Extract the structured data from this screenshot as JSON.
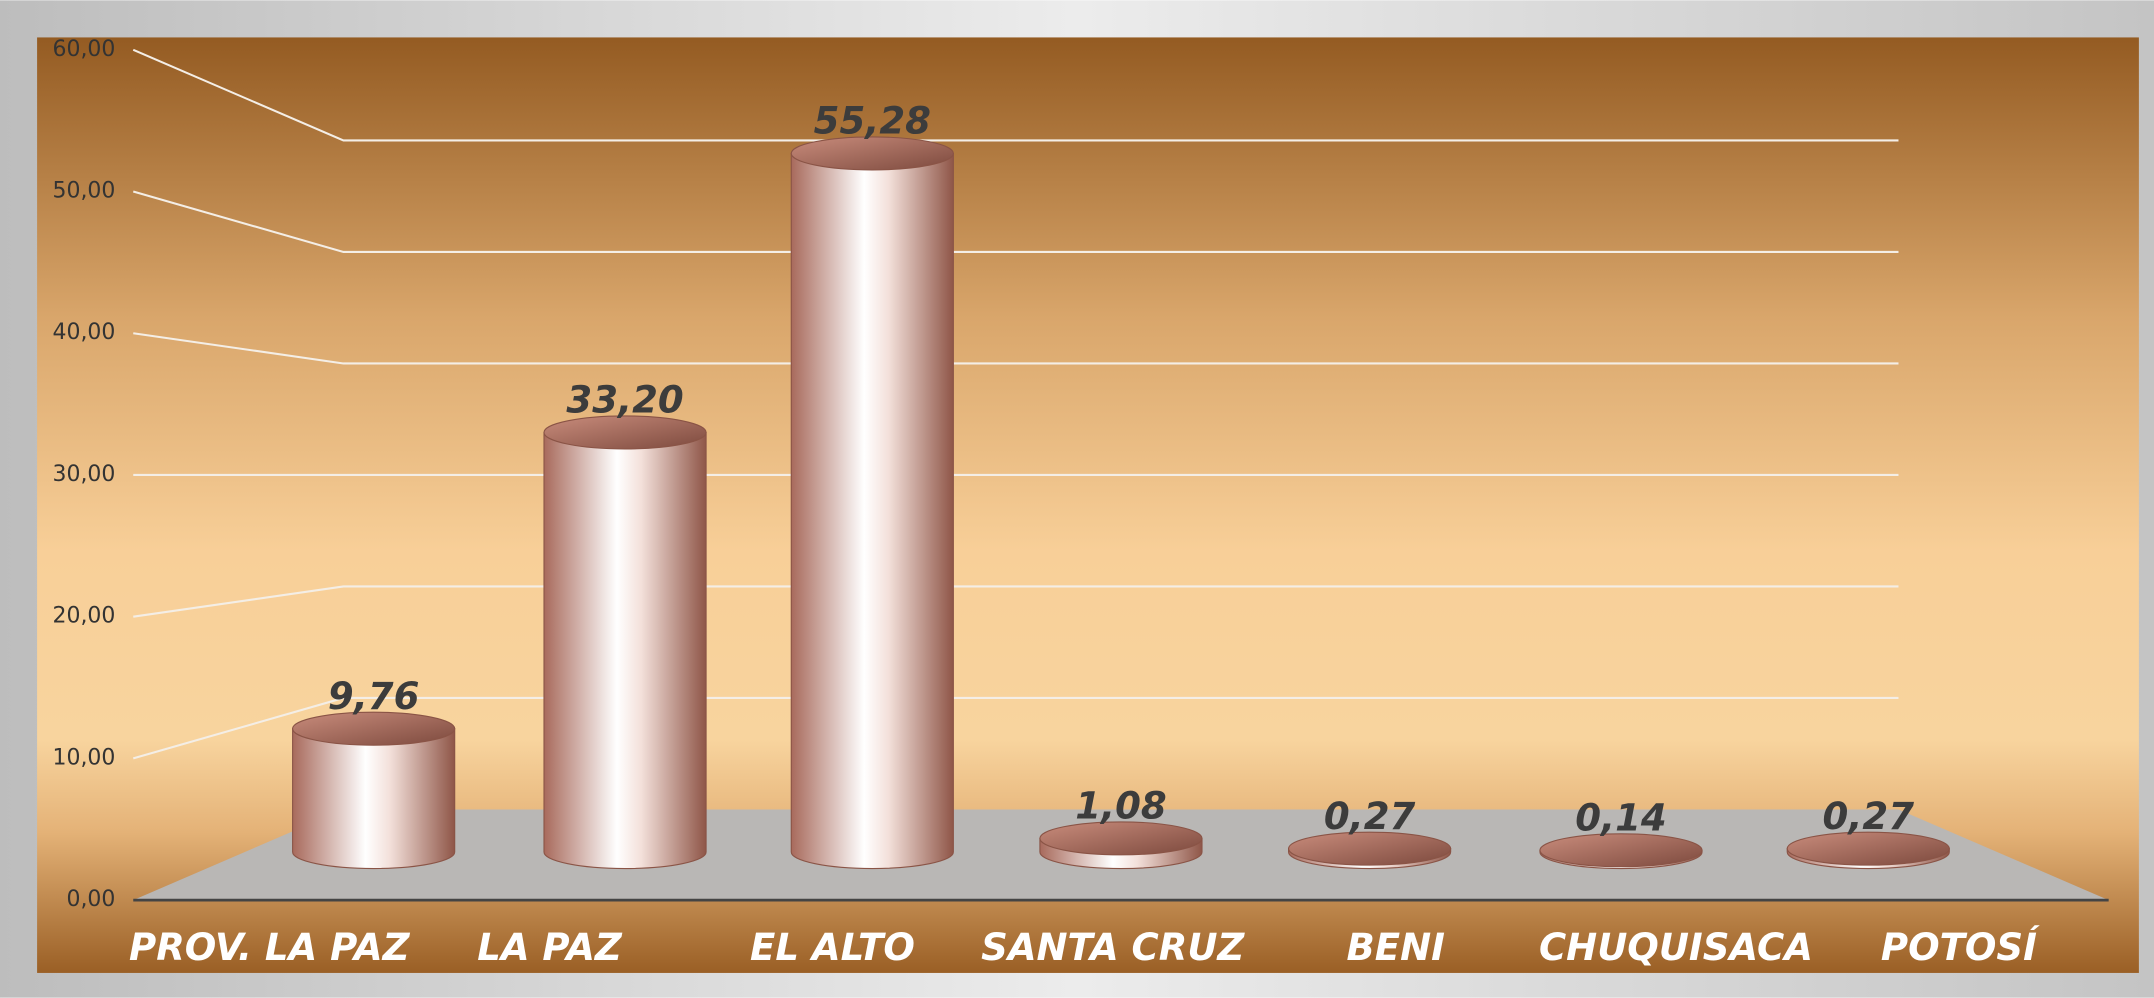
{
  "chart_data": {
    "type": "bar3d",
    "categories": [
      "PROV. LA PAZ",
      "LA PAZ",
      "EL ALTO",
      "SANTA CRUZ",
      "BENI",
      "CHUQUISACA",
      "POTOSÍ"
    ],
    "values": [
      9.76,
      33.2,
      55.28,
      1.08,
      0.27,
      0.14,
      0.27
    ],
    "value_labels": [
      "9,76",
      "33,20",
      "55,28",
      "1,08",
      "0,27",
      "0,14",
      "0,27"
    ],
    "color": "#b47868",
    "ylim": [
      0,
      60
    ],
    "yticks": [
      {
        "value": 0,
        "label": "0,00"
      },
      {
        "value": 10,
        "label": "10,00"
      },
      {
        "value": 20,
        "label": "20,00"
      },
      {
        "value": 30,
        "label": "30,00"
      },
      {
        "value": 40,
        "label": "40,00"
      },
      {
        "value": 50,
        "label": "50,00"
      },
      {
        "value": 60,
        "label": "60,00"
      }
    ],
    "grid": true
  }
}
